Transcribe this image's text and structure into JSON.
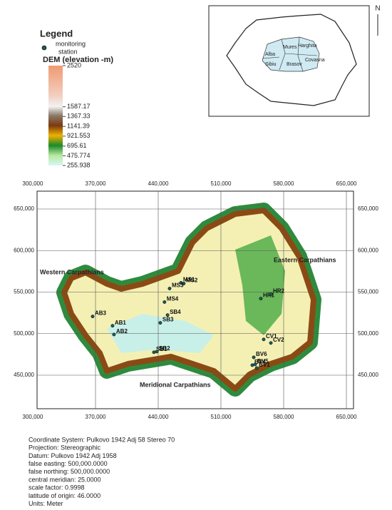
{
  "legend": {
    "title": "Legend",
    "station_label": [
      "monitoring",
      "station"
    ],
    "dem_title": "DEM (elevation -m)",
    "dem_ticks": [
      2520,
      1587.17,
      1367.33,
      1141.39,
      921.553,
      695.61,
      475.774,
      255.938
    ]
  },
  "inset": {
    "north": "N",
    "counties": [
      "Mures",
      "Harghita",
      "Alba",
      "Sibiu",
      "Covasna",
      "Brasov"
    ]
  },
  "map": {
    "xticks": [
      {
        "value": 300000,
        "label": "300,000"
      },
      {
        "value": 370000,
        "label": "370,000"
      },
      {
        "value": 440000,
        "label": "440,000"
      },
      {
        "value": 510000,
        "label": "510,000"
      },
      {
        "value": 580000,
        "label": "580,000"
      },
      {
        "value": 650000,
        "label": "650,000"
      }
    ],
    "yticks": [
      {
        "value": 650000,
        "label": "650,000"
      },
      {
        "value": 600000,
        "label": "600,000"
      },
      {
        "value": 550000,
        "label": "550,000"
      },
      {
        "value": 500000,
        "label": "500,000"
      },
      {
        "value": 450000,
        "label": "450,000"
      }
    ],
    "regions": [
      "Western Carpathians",
      "Eastern Carpathians",
      "Meridional Carpathians"
    ],
    "stations": [
      {
        "name": "MS1",
        "x": 465400,
        "y": 561200
      },
      {
        "name": "MS2",
        "x": 468500,
        "y": 560300
      },
      {
        "name": "MS3",
        "x": 452700,
        "y": 554300
      },
      {
        "name": "MS4",
        "x": 447000,
        "y": 538000
      },
      {
        "name": "SB4",
        "x": 450400,
        "y": 522400
      },
      {
        "name": "SB3",
        "x": 442300,
        "y": 513000
      },
      {
        "name": "AB1",
        "x": 389000,
        "y": 509500
      },
      {
        "name": "AB2",
        "x": 390600,
        "y": 499000
      },
      {
        "name": "AB3",
        "x": 366800,
        "y": 520700
      },
      {
        "name": "SB1",
        "x": 435200,
        "y": 477600
      },
      {
        "name": "SB2",
        "x": 438400,
        "y": 478400
      },
      {
        "name": "HR1",
        "x": 554500,
        "y": 542200
      },
      {
        "name": "HR2",
        "x": 565700,
        "y": 547400
      },
      {
        "name": "CV1",
        "x": 557700,
        "y": 493100
      },
      {
        "name": "CV2",
        "x": 565700,
        "y": 488800
      },
      {
        "name": "BV6",
        "x": 546600,
        "y": 471500
      },
      {
        "name": "BV4",
        "x": 545000,
        "y": 462100
      },
      {
        "name": "BV5",
        "x": 548200,
        "y": 463000
      },
      {
        "name": "BV1",
        "x": 549900,
        "y": 458600
      }
    ]
  },
  "footer": [
    "Coordinate System: Pulkovo 1942 Adj 58 Stereo 70",
    "Projection: Stereographic",
    "Datum: Pulkovo 1942 Adj 1958",
    "false easting: 500,000.0000",
    "false northing: 500,000.0000",
    "central meridian: 25.0000",
    "scale factor: 0.9998",
    "latitude of origin: 46.0000",
    "Units: Meter"
  ]
}
